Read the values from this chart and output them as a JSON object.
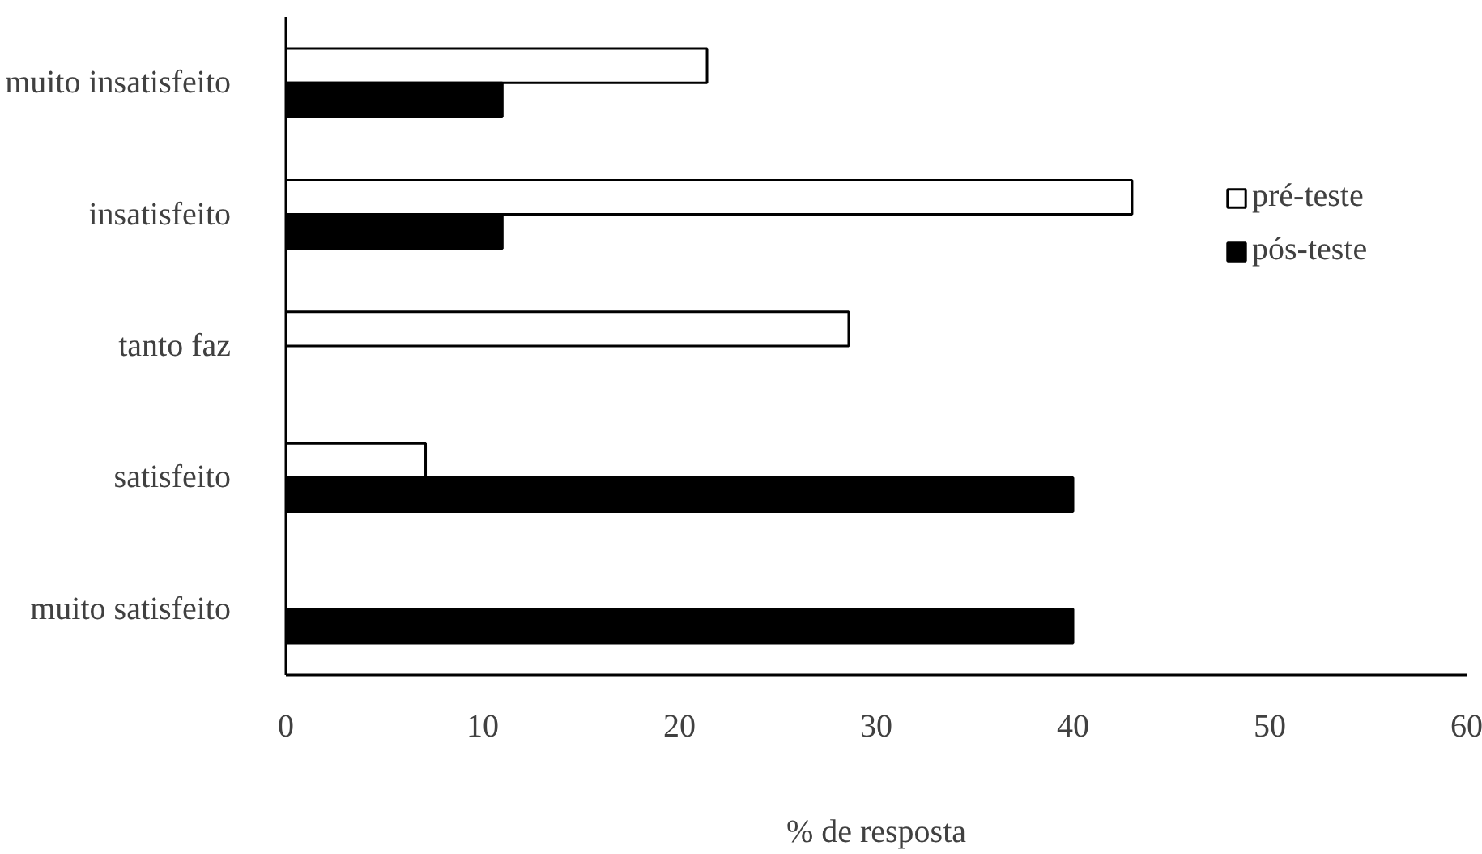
{
  "chart_data": {
    "type": "bar",
    "orientation": "horizontal",
    "xlabel": "% de resposta",
    "categories": [
      "muito insatisfeito",
      "insatisfeito",
      "tanto faz",
      "satisfeito",
      "muito satisfeito"
    ],
    "series": [
      {
        "name": "pré-teste",
        "color": "#ffffff",
        "values": [
          21.4,
          43,
          28.6,
          7.1,
          0
        ]
      },
      {
        "name": "pós-teste",
        "color": "#000000",
        "values": [
          11,
          11,
          0,
          40,
          40
        ]
      }
    ],
    "xlim": [
      0,
      60
    ],
    "xticks": [
      0,
      10,
      20,
      30,
      40,
      50,
      60
    ],
    "grid": false,
    "legend": "right"
  }
}
